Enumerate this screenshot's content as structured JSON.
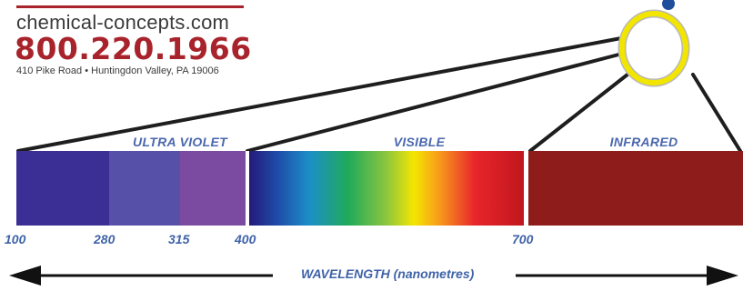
{
  "header": {
    "website": "chemical-concepts.com",
    "phone": "800.220.1966",
    "address": "410 Pike Road • Huntingdon Valley, PA 19006",
    "brand_color": "#a8232b"
  },
  "spectrum": {
    "regions": [
      {
        "label": "ULTRA VIOLET"
      },
      {
        "label": "VISIBLE"
      },
      {
        "label": "INFRARED"
      }
    ],
    "ticks": [
      "100",
      "280",
      "315",
      "400",
      "700"
    ],
    "axis_label": "WAVELENGTH (nanometres)",
    "colors": {
      "uv_c": "#3b2f96",
      "uv_b": "#5650a8",
      "uv_a": "#7b4aa1",
      "infrared": "#8e1c1a",
      "label_blue": "#4a68ae",
      "sun_ring": "#f2e500"
    }
  }
}
